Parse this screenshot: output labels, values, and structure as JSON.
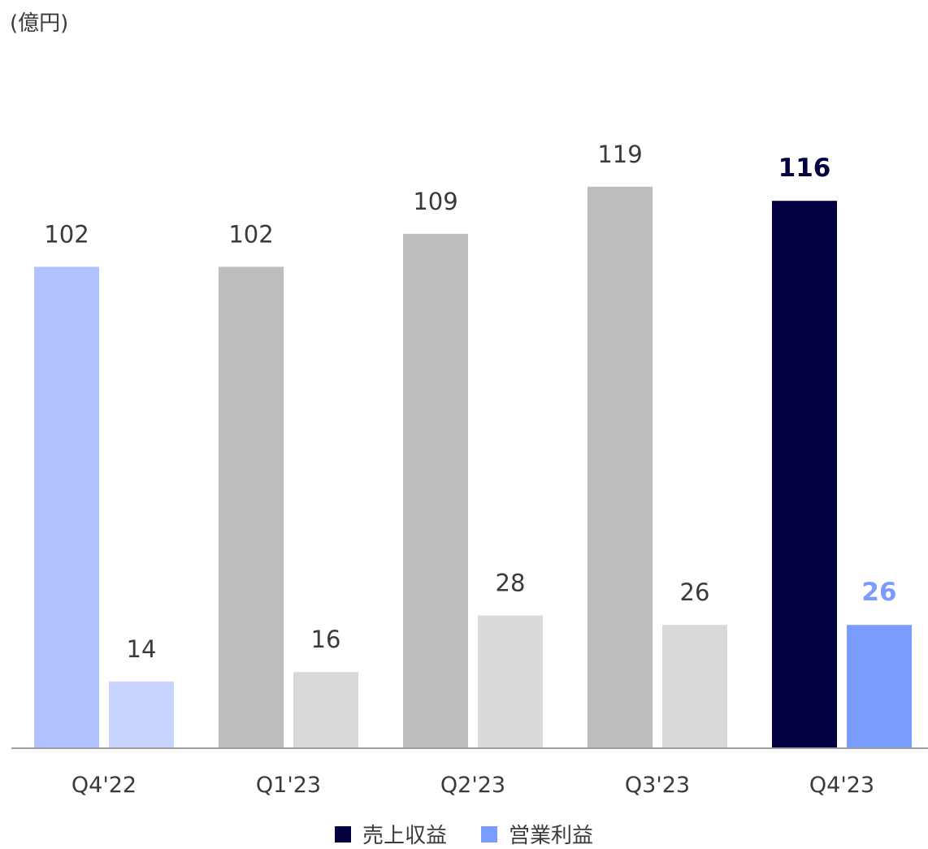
{
  "chart_data": {
    "type": "bar",
    "unit_label": "(億円)",
    "categories": [
      "Q4'22",
      "Q1'23",
      "Q2'23",
      "Q3'23",
      "Q4'23"
    ],
    "series": [
      {
        "name": "売上収益",
        "values": [
          102,
          102,
          109,
          119,
          116
        ]
      },
      {
        "name": "営業利益",
        "values": [
          14,
          16,
          28,
          26,
          26
        ]
      }
    ],
    "ylim": [
      0,
      125
    ],
    "grid": false,
    "legend_position": "bottom",
    "colors": {
      "revenue_highlight": "#02003f",
      "operating_profit_highlight": "#7b9cff",
      "revenue_prior_year": "#b0c2ff",
      "operating_profit_prior_year": "#c9d5ff",
      "revenue_other": "#bdbdbd",
      "operating_profit_other": "#d9d9d9",
      "axis": "#9e9e9e",
      "label": "#3a3a3a"
    },
    "highlight_category": "Q4'23"
  }
}
